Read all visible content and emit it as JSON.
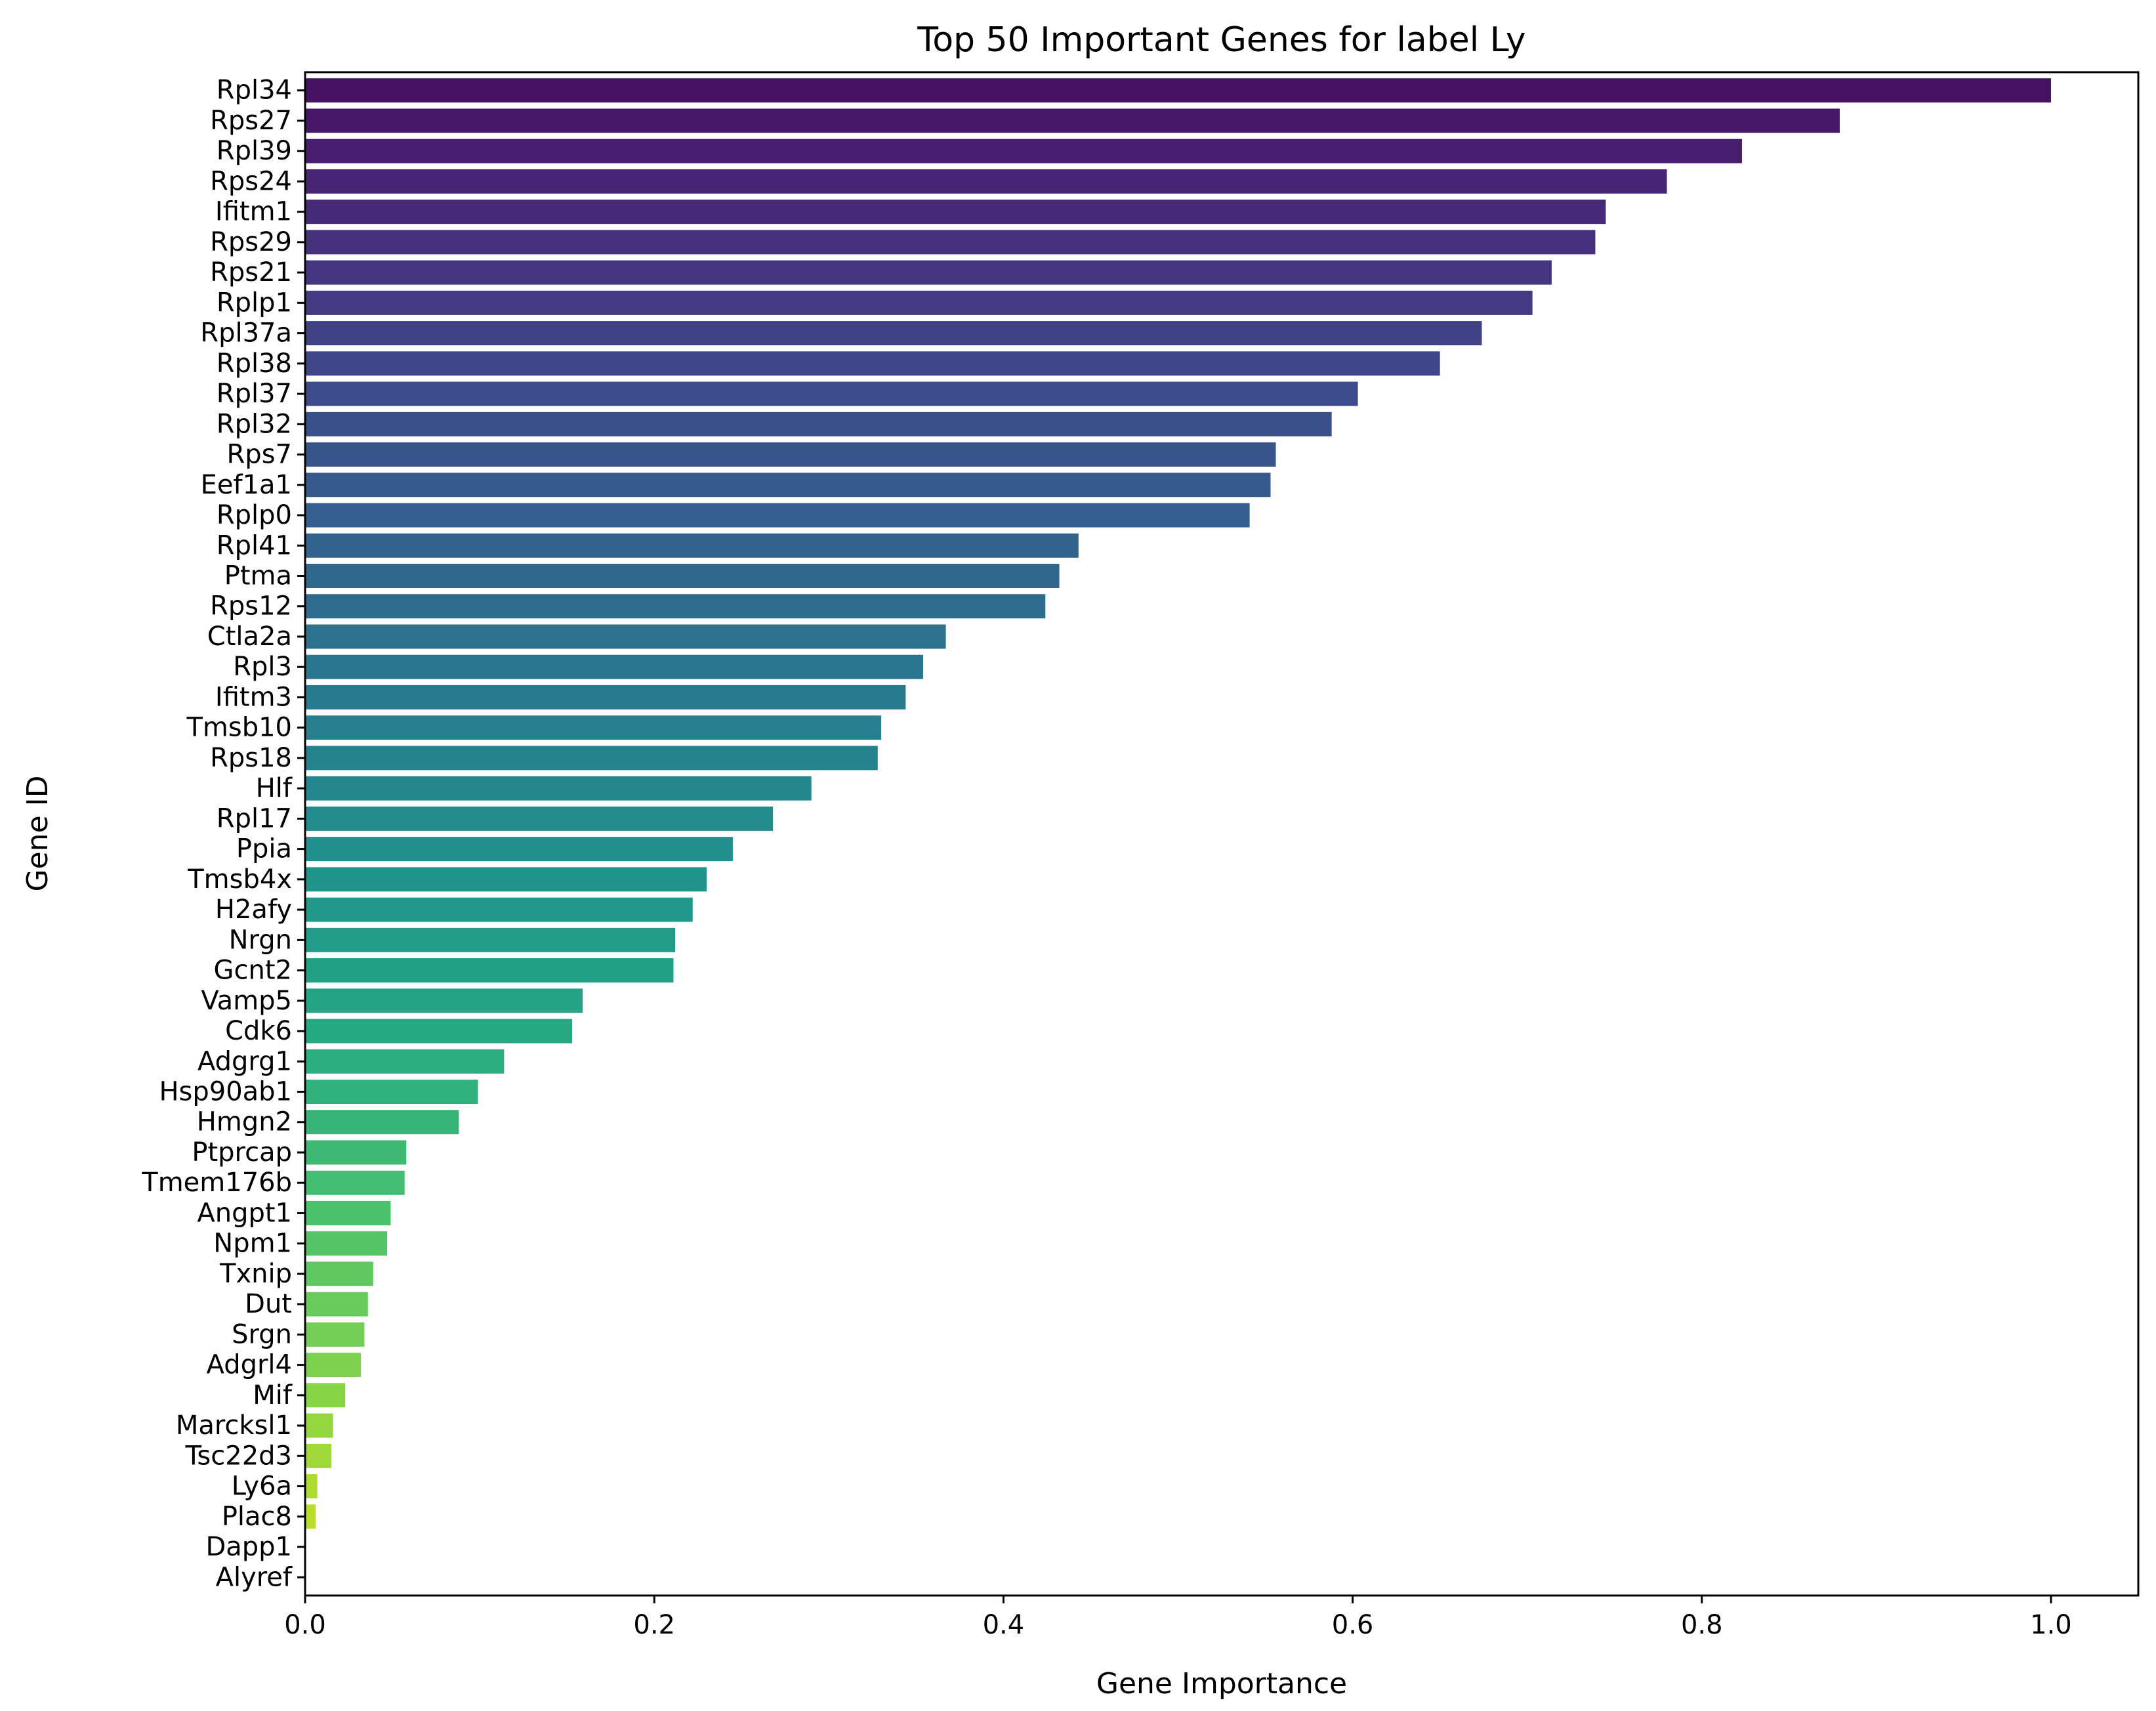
{
  "chart_data": {
    "type": "bar",
    "orientation": "horizontal",
    "title": "Top 50 Important Genes for label Ly",
    "xlabel": "Gene Importance",
    "ylabel": "Gene ID",
    "xlim": [
      0,
      1.05
    ],
    "xticks": [
      "0.0",
      "0.2",
      "0.4",
      "0.6",
      "0.8",
      "1.0"
    ],
    "xtick_values": [
      0,
      0.2,
      0.4,
      0.6,
      0.8,
      1.0
    ],
    "colormap": "viridis",
    "grid": false,
    "categories": [
      "Rpl34",
      "Rps27",
      "Rpl39",
      "Rps24",
      "Ifitm1",
      "Rps29",
      "Rps21",
      "Rplp1",
      "Rpl37a",
      "Rpl38",
      "Rpl37",
      "Rpl32",
      "Rps7",
      "Eef1a1",
      "Rplp0",
      "Rpl41",
      "Ptma",
      "Rps12",
      "Ctla2a",
      "Rpl3",
      "Ifitm3",
      "Tmsb10",
      "Rps18",
      "Hlf",
      "Rpl17",
      "Ppia",
      "Tmsb4x",
      "H2afy",
      "Nrgn",
      "Gcnt2",
      "Vamp5",
      "Cdk6",
      "Adgrg1",
      "Hsp90ab1",
      "Hmgn2",
      "Ptprcap",
      "Tmem176b",
      "Angpt1",
      "Npm1",
      "Txnip",
      "Dut",
      "Srgn",
      "Adgrl4",
      "Mif",
      "Marcksl1",
      "Tsc22d3",
      "Ly6a",
      "Plac8",
      "Dapp1",
      "Alyref"
    ],
    "values": [
      1.0,
      0.879,
      0.823,
      0.78,
      0.745,
      0.739,
      0.714,
      0.703,
      0.674,
      0.65,
      0.603,
      0.588,
      0.556,
      0.553,
      0.541,
      0.443,
      0.432,
      0.424,
      0.367,
      0.354,
      0.344,
      0.33,
      0.328,
      0.29,
      0.268,
      0.245,
      0.23,
      0.222,
      0.212,
      0.211,
      0.159,
      0.153,
      0.114,
      0.099,
      0.088,
      0.058,
      0.057,
      0.049,
      0.047,
      0.039,
      0.036,
      0.034,
      0.032,
      0.023,
      0.016,
      0.015,
      0.007,
      0.006,
      0.0,
      0.0
    ]
  }
}
